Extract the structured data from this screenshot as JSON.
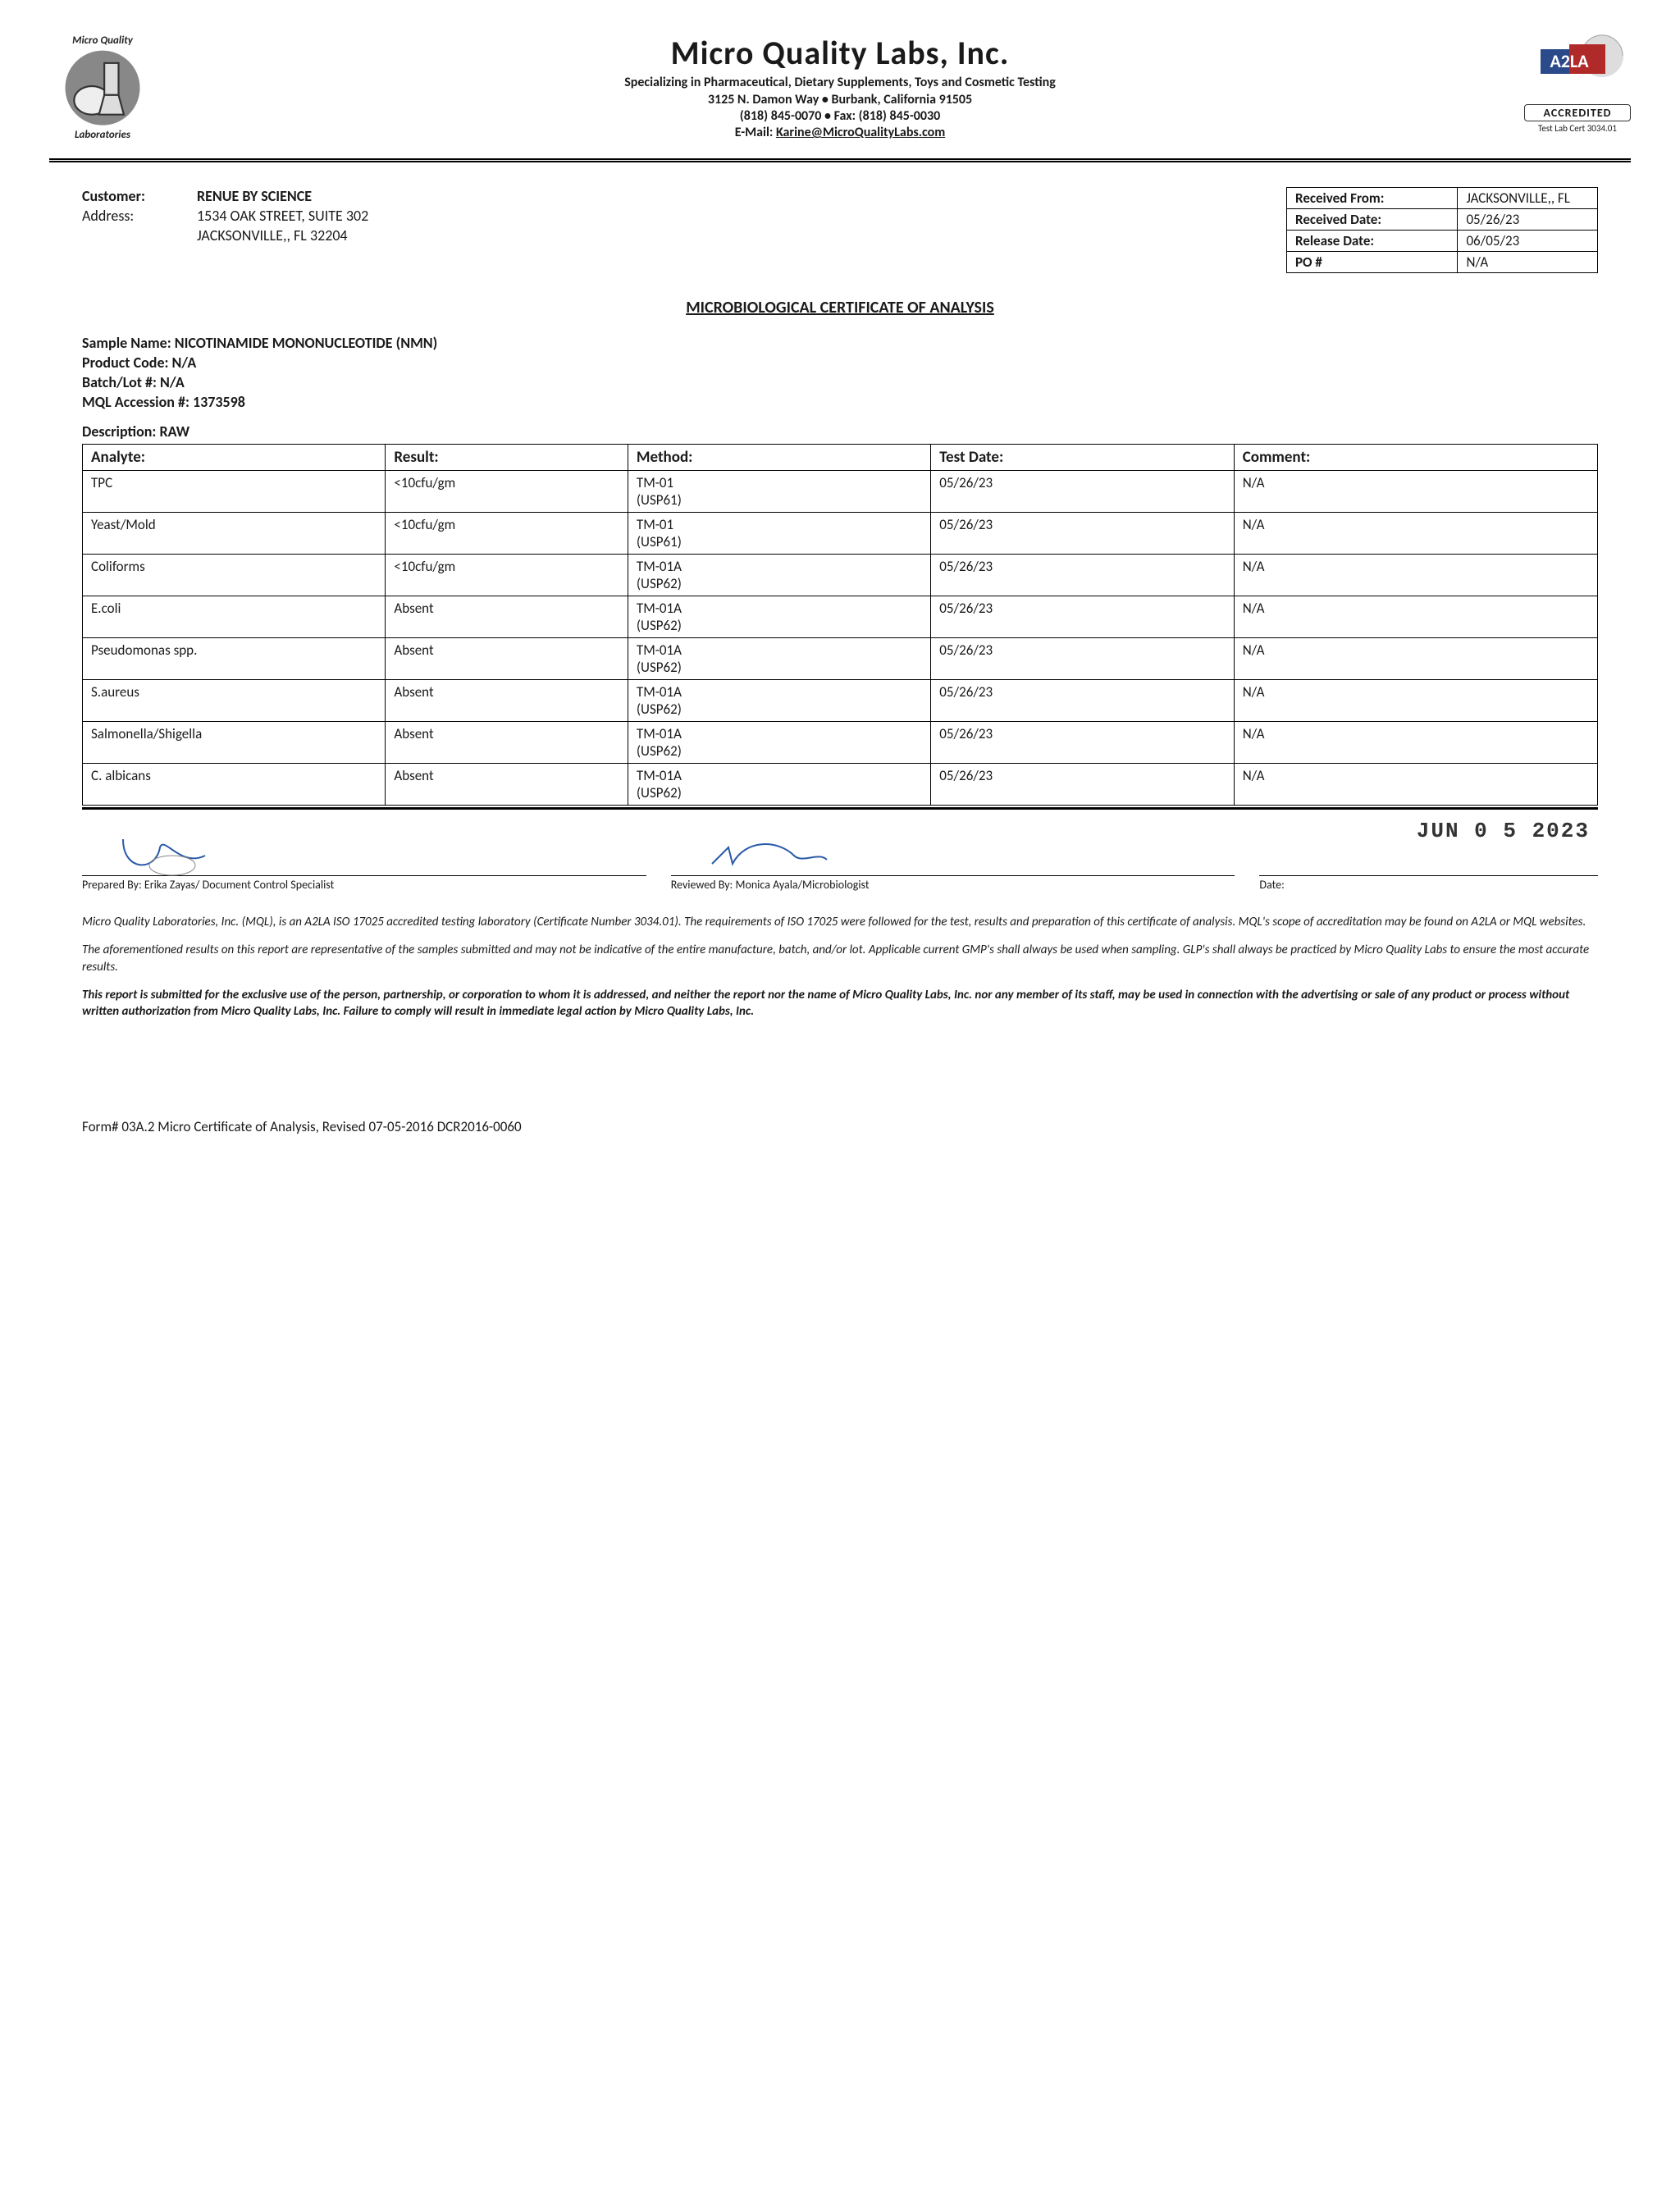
{
  "header": {
    "company": "Micro Quality Labs, Inc.",
    "tagline": "Specializing in Pharmaceutical, Dietary Supplements, Toys and Cosmetic Testing",
    "address": "3125 N. Damon Way • Burbank, California 91505",
    "phone_fax": "(818) 845-0070 • Fax: (818) 845-0030",
    "email_prefix": "E-Mail: ",
    "email": "Karine@MicroQualityLabs.com",
    "left_logo_text_top": "Micro Quality",
    "left_logo_text_bottom": "Laboratories",
    "accred_label": "ACCREDITED",
    "accred_cert": "Test Lab Cert 3034.01"
  },
  "customer": {
    "label_customer": "Customer:",
    "label_address": "Address:",
    "name": "RENUE BY SCIENCE",
    "street": "1534 OAK STREET, SUITE 302",
    "city": "JACKSONVILLE,, FL 32204"
  },
  "meta": {
    "rows": [
      {
        "label": "Received From:",
        "value": "JACKSONVILLE,, FL"
      },
      {
        "label": "Received Date:",
        "value": "05/26/23"
      },
      {
        "label": "Release Date:",
        "value": "06/05/23"
      },
      {
        "label": "PO #",
        "value": "N/A"
      }
    ]
  },
  "title": "MICROBIOLOGICAL CERTIFICATE OF ANALYSIS",
  "sample": {
    "name_label": "Sample Name: ",
    "name": "NICOTINAMIDE MONONUCLEOTIDE (NMN)",
    "product_code": "Product Code: N/A",
    "batch": "Batch/Lot #: N/A",
    "accession": "MQL Accession #: 1373598",
    "description": "Description: RAW"
  },
  "results": {
    "columns": [
      "Analyte:",
      "Result:",
      "Method:",
      "Test Date:",
      "Comment:"
    ],
    "rows": [
      {
        "analyte": "TPC",
        "result": "<10cfu/gm",
        "method": "TM-01\n(USP61)",
        "date": "05/26/23",
        "comment": "N/A"
      },
      {
        "analyte": "Yeast/Mold",
        "result": "<10cfu/gm",
        "method": "TM-01\n(USP61)",
        "date": "05/26/23",
        "comment": "N/A"
      },
      {
        "analyte": "Coliforms",
        "result": "<10cfu/gm",
        "method": "TM-01A\n(USP62)",
        "date": "05/26/23",
        "comment": "N/A"
      },
      {
        "analyte": "E.coli",
        "result": "Absent",
        "method": "TM-01A\n(USP62)",
        "date": "05/26/23",
        "comment": "N/A"
      },
      {
        "analyte": "Pseudomonas spp.",
        "result": "Absent",
        "method": "TM-01A\n(USP62)",
        "date": "05/26/23",
        "comment": "N/A"
      },
      {
        "analyte": "S.aureus",
        "result": "Absent",
        "method": "TM-01A\n(USP62)",
        "date": "05/26/23",
        "comment": "N/A"
      },
      {
        "analyte": "Salmonella/Shigella",
        "result": "Absent",
        "method": "TM-01A\n(USP62)",
        "date": "05/26/23",
        "comment": "N/A"
      },
      {
        "analyte": "C. albicans",
        "result": "Absent",
        "method": "TM-01A\n(USP62)",
        "date": "05/26/23",
        "comment": "N/A"
      }
    ]
  },
  "signatures": {
    "stamp": "JUN 0 5 2023",
    "prepared": "Prepared By: Erika Zayas/ Document Control Specialist",
    "reviewed": "Reviewed By: Monica Ayala/Microbiologist",
    "date_label": "Date:"
  },
  "disclaimer": {
    "p1": "Micro Quality Laboratories, Inc. (MQL), is an A2LA ISO 17025 accredited testing laboratory (Certificate Number 3034.01). The requirements of ISO 17025 were followed for the test, results and preparation of this certificate of analysis. MQL's scope of accreditation may be found on A2LA or MQL websites.",
    "p2": "The aforementioned results on this report are representative of the samples submitted and may not be indicative of the entire manufacture, batch, and/or lot. Applicable current GMP's shall always be used when sampling. GLP's shall always be practiced by Micro Quality Labs to ensure the most accurate results.",
    "p3": "This report is submitted for the exclusive use of the person, partnership, or corporation to whom it is addressed, and neither the report nor the name of Micro Quality Labs, Inc. nor any member of its staff, may be used in connection with the advertising or sale of any product or process without written authorization from Micro Quality Labs, Inc. Failure to comply will result in immediate legal action by Micro Quality Labs, Inc."
  },
  "footer": "Form# 03A.2 Micro Certificate of Analysis, Revised 07-05-2016 DCR2016-0060"
}
